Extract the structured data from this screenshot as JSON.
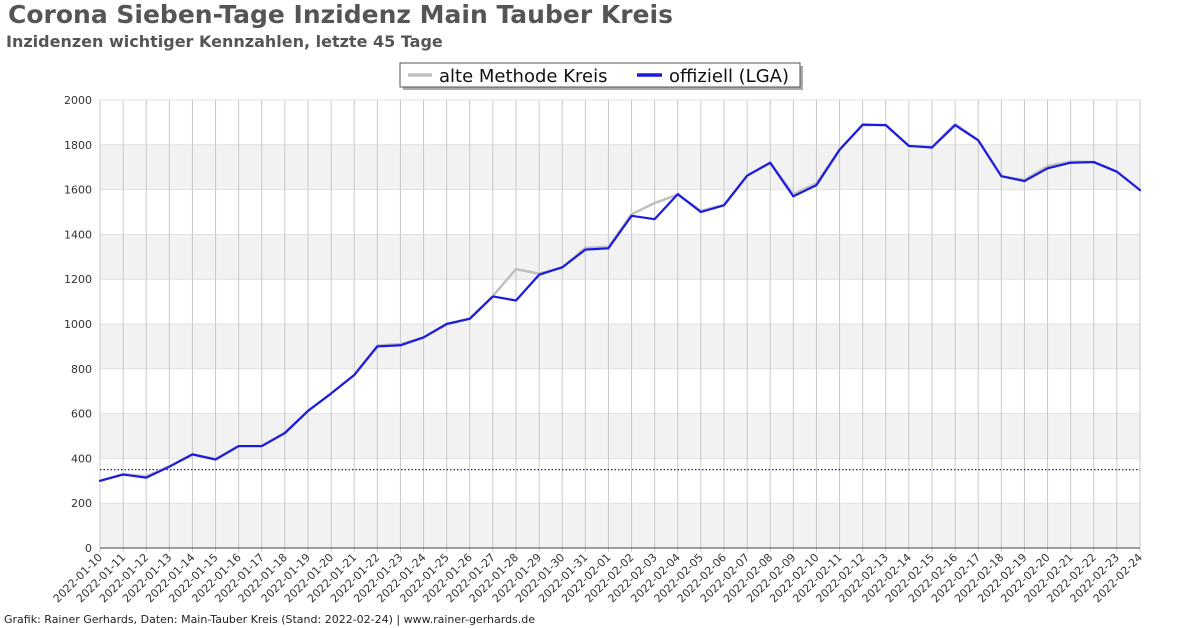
{
  "title": "Corona Sieben-Tage Inzidenz Main Tauber Kreis",
  "subtitle": "Inzidenzen wichtiger Kennzahlen, letzte 45 Tage",
  "footer": "Grafik: Rainer Gerhards, Daten: Main-Tauber Kreis (Stand: 2022-02-24) | www.rainer-gerhards.de",
  "colors": {
    "alte_methode": "#c0c0c0",
    "offiziell": "#1a1ae0",
    "reference_line": "#1a1ab4",
    "band": "#f2f2f2",
    "grid": "#c8c8c8"
  },
  "chart_data": {
    "type": "line",
    "title": "Corona Sieben-Tage Inzidenz Main Tauber Kreis",
    "subtitle": "Inzidenzen wichtiger Kennzahlen, letzte 45 Tage",
    "xlabel": "",
    "ylabel": "",
    "ylim": [
      0,
      2000
    ],
    "yticks": [
      0,
      200,
      400,
      600,
      800,
      1000,
      1200,
      1400,
      1600,
      1800,
      2000
    ],
    "grid": true,
    "legend_position": "top-center",
    "x": [
      "2022-01-10",
      "2022-01-11",
      "2022-01-12",
      "2022-01-13",
      "2022-01-14",
      "2022-01-15",
      "2022-01-16",
      "2022-01-17",
      "2022-01-18",
      "2022-01-19",
      "2022-01-20",
      "2022-01-21",
      "2022-01-22",
      "2022-01-23",
      "2022-01-24",
      "2022-01-25",
      "2022-01-26",
      "2022-01-27",
      "2022-01-28",
      "2022-01-29",
      "2022-01-30",
      "2022-01-31",
      "2022-02-01",
      "2022-02-02",
      "2022-02-03",
      "2022-02-04",
      "2022-02-05",
      "2022-02-06",
      "2022-02-07",
      "2022-02-08",
      "2022-02-09",
      "2022-02-10",
      "2022-02-11",
      "2022-02-12",
      "2022-02-13",
      "2022-02-14",
      "2022-02-15",
      "2022-02-16",
      "2022-02-17",
      "2022-02-18",
      "2022-02-19",
      "2022-02-20",
      "2022-02-21",
      "2022-02-22",
      "2022-02-23",
      "2022-02-24"
    ],
    "series": [
      {
        "name": "alte Methode Kreis",
        "color": "#c0c0c0",
        "values": [
          300,
          330,
          320,
          365,
          418,
          398,
          455,
          455,
          515,
          612,
          690,
          773,
          904,
          910,
          940,
          1000,
          1025,
          1125,
          1245,
          1225,
          1252,
          1340,
          1345,
          1490,
          1540,
          1578,
          1505,
          1532,
          1662,
          1720,
          1580,
          1628,
          1778,
          1888,
          1888,
          1795,
          1790,
          1893,
          1820,
          1660,
          1643,
          1705,
          1725,
          1723,
          1680,
          1598
        ]
      },
      {
        "name": "offiziell (LGA)",
        "color": "#1a1ae0",
        "values": [
          300,
          328,
          314,
          363,
          418,
          395,
          455,
          455,
          513,
          612,
          690,
          772,
          900,
          905,
          940,
          1000,
          1023,
          1123,
          1105,
          1220,
          1253,
          1332,
          1338,
          1483,
          1468,
          1580,
          1500,
          1530,
          1662,
          1720,
          1570,
          1620,
          1778,
          1890,
          1888,
          1795,
          1788,
          1888,
          1820,
          1660,
          1638,
          1695,
          1720,
          1723,
          1680,
          1598
        ]
      }
    ],
    "reference_line": {
      "value": 350,
      "style": "dotted",
      "color": "#1a1ab4"
    }
  }
}
